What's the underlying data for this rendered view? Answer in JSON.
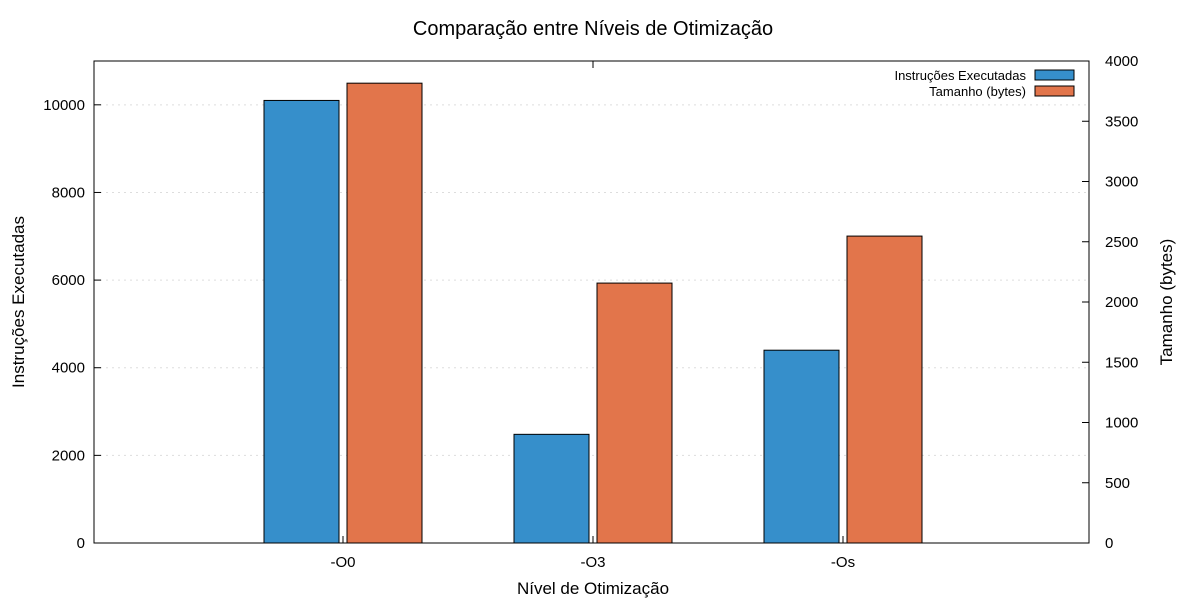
{
  "chart_data": {
    "type": "bar",
    "title": "Comparação entre Níveis de Otimização",
    "xlabel": "Nível de Otimização",
    "ylabel": "Instruções Executadas",
    "y2label": "Tamanho (bytes)",
    "categories": [
      "-O0",
      "-O3",
      "-Os"
    ],
    "ylim": [
      0,
      11000
    ],
    "y2lim": [
      0,
      4000
    ],
    "yticks": [
      "0",
      "2000",
      "4000",
      "6000",
      "8000",
      "10000"
    ],
    "y2ticks": [
      "0",
      "500",
      "1000",
      "1500",
      "2000",
      "2500",
      "3000",
      "3500",
      "4000"
    ],
    "grid": "horizontal dotted",
    "legend_position": "top-right",
    "series": [
      {
        "name": "Instruções Executadas",
        "axis": "left",
        "color": "#368fcb",
        "values": [
          10100,
          2480,
          4400
        ]
      },
      {
        "name": "Tamanho (bytes)",
        "axis": "right",
        "color": "#e2754b",
        "values": [
          3816,
          2157,
          2547
        ]
      }
    ]
  }
}
